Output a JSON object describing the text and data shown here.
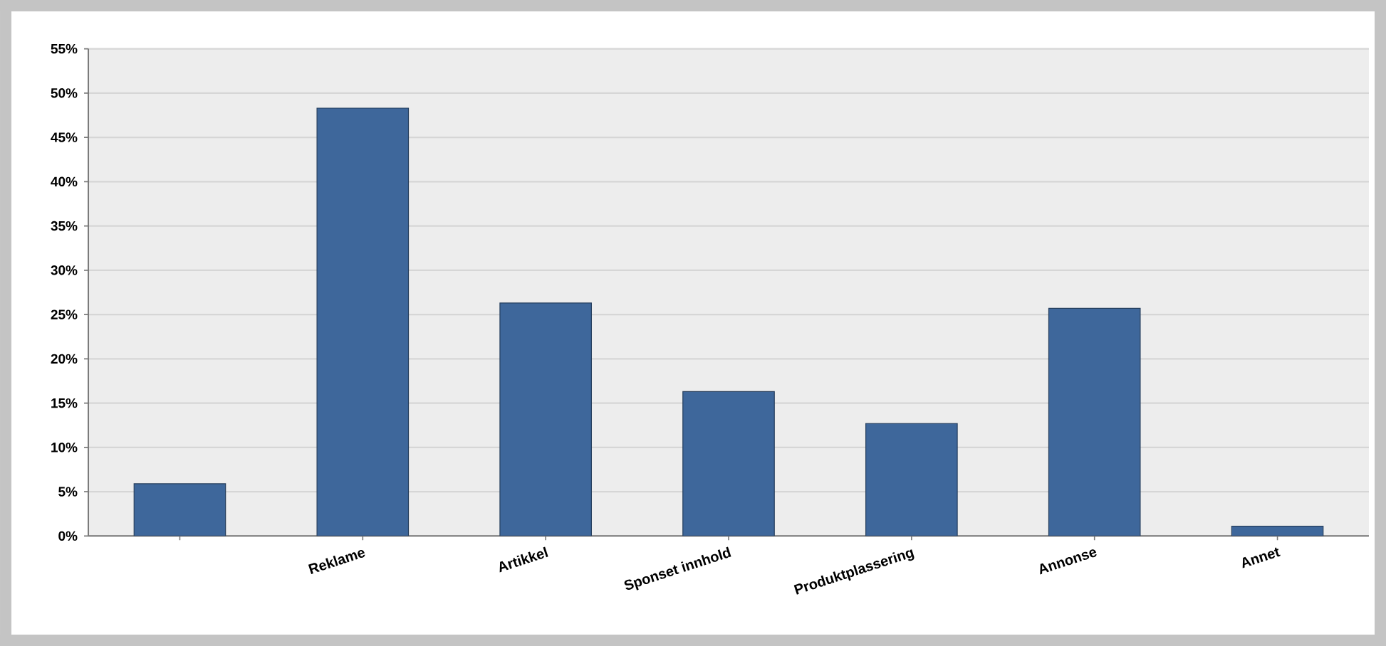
{
  "chart_data": {
    "type": "bar",
    "categories": [
      null,
      "Reklame",
      "Artikkel",
      "Sponset innhold",
      "Produktplassering",
      "Annonse",
      "Annet"
    ],
    "values": [
      5.9,
      48.3,
      26.3,
      16.3,
      12.7,
      25.7,
      1.1
    ],
    "color": "#3e679b",
    "ylim": [
      0,
      55
    ],
    "yticks": [
      {
        "value": 0,
        "label": "0%"
      },
      {
        "value": 5,
        "label": "5%"
      },
      {
        "value": 10,
        "label": "10%"
      },
      {
        "value": 15,
        "label": "15%"
      },
      {
        "value": 20,
        "label": "20%"
      },
      {
        "value": 25,
        "label": "25%"
      },
      {
        "value": 30,
        "label": "30%"
      },
      {
        "value": 35,
        "label": "35%"
      },
      {
        "value": 40,
        "label": "40%"
      },
      {
        "value": 45,
        "label": "45%"
      },
      {
        "value": 50,
        "label": "50%"
      },
      {
        "value": 55,
        "label": "55%"
      }
    ],
    "grid": "y"
  }
}
